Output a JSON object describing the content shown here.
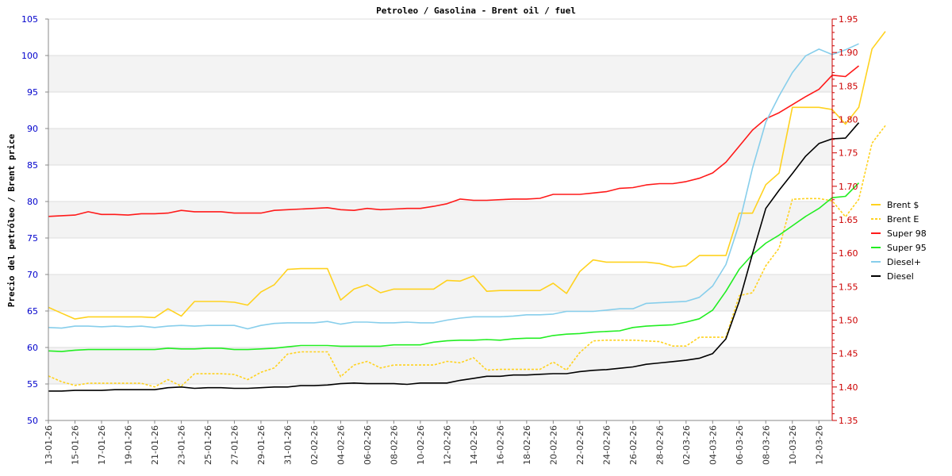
{
  "chart_data": {
    "type": "line",
    "title": "Petroleo / Gasolina  -  Brent oil / fuel",
    "ylabel": "Precio del petróleo  /  Brent price",
    "xlabel": "",
    "ylim_left": [
      50,
      105
    ],
    "ylim_right": [
      1.35,
      1.95
    ],
    "y_ticks_left": [
      50,
      55,
      60,
      65,
      70,
      75,
      80,
      85,
      90,
      95,
      100,
      105
    ],
    "y_ticks_right": [
      "1.35",
      "1.40",
      "1.45",
      "1.50",
      "1.55",
      "1.60",
      "1.65",
      "1.70",
      "1.75",
      "1.80",
      "1.85",
      "1.90",
      "1.95"
    ],
    "x_tick_labels": [
      "13-01-26",
      "15-01-26",
      "17-01-26",
      "19-01-26",
      "21-01-26",
      "23-01-26",
      "25-01-26",
      "27-01-26",
      "29-01-26",
      "31-01-26",
      "02-02-26",
      "04-02-26",
      "06-02-26",
      "08-02-26",
      "10-02-26",
      "12-02-26",
      "14-02-26",
      "16-02-26",
      "18-02-26",
      "20-02-26",
      "22-02-26",
      "24-02-26",
      "26-02-26",
      "28-02-26",
      "02-03-26",
      "04-03-26",
      "06-03-26",
      "08-03-26",
      "10-03-26",
      "12-03-26"
    ],
    "x_count": 60,
    "grid": true,
    "legend_position": "right",
    "series": [
      {
        "name": "Brent $",
        "axis": "left",
        "color": "#ffd21f",
        "dash": false,
        "values": [
          65.5,
          64.7,
          63.9,
          64.2,
          64.2,
          64.2,
          64.2,
          64.2,
          64.1,
          65.3,
          64.3,
          66.3,
          66.3,
          66.3,
          66.2,
          65.8,
          67.6,
          68.6,
          70.7,
          70.8,
          70.8,
          70.8,
          66.5,
          68.0,
          68.6,
          67.5,
          68.0,
          68.0,
          68.0,
          68.0,
          69.2,
          69.1,
          69.8,
          67.7,
          67.8,
          67.8,
          67.8,
          67.8,
          68.8,
          67.4,
          70.4,
          72.0,
          71.7,
          71.7,
          71.7,
          71.7,
          71.5,
          71.0,
          71.2,
          72.6,
          72.6,
          72.6,
          78.4,
          78.4,
          82.3,
          83.9,
          92.9,
          92.9,
          92.9,
          92.6,
          90.6,
          92.9,
          100.9,
          103.3
        ]
      },
      {
        "name": "Brent E",
        "axis": "left",
        "color": "#ffd21f",
        "dash": true,
        "values": [
          56.1,
          55.3,
          54.8,
          55.1,
          55.1,
          55.1,
          55.1,
          55.1,
          54.6,
          55.6,
          54.7,
          56.4,
          56.4,
          56.4,
          56.3,
          55.6,
          56.6,
          57.2,
          59.1,
          59.4,
          59.4,
          59.4,
          56.0,
          57.6,
          58.1,
          57.2,
          57.6,
          57.6,
          57.6,
          57.6,
          58.1,
          57.9,
          58.6,
          56.9,
          57.0,
          57.0,
          57.0,
          57.0,
          58.0,
          56.9,
          59.3,
          60.9,
          61.0,
          61.0,
          61.0,
          60.9,
          60.8,
          60.2,
          60.2,
          61.4,
          61.4,
          61.4,
          67.1,
          67.5,
          71.2,
          73.6,
          80.3,
          80.4,
          80.4,
          80.1,
          77.9,
          80.3,
          88.0,
          90.4
        ]
      },
      {
        "name": "Super 98",
        "axis": "right",
        "color": "#ff1a1a",
        "dash": false,
        "values": [
          1.655,
          1.656,
          1.657,
          1.662,
          1.658,
          1.658,
          1.657,
          1.659,
          1.659,
          1.66,
          1.664,
          1.662,
          1.662,
          1.662,
          1.66,
          1.66,
          1.66,
          1.664,
          1.665,
          1.666,
          1.667,
          1.668,
          1.665,
          1.664,
          1.667,
          1.665,
          1.666,
          1.667,
          1.667,
          1.67,
          1.674,
          1.681,
          1.679,
          1.679,
          1.68,
          1.681,
          1.681,
          1.682,
          1.688,
          1.688,
          1.688,
          1.69,
          1.692,
          1.697,
          1.698,
          1.702,
          1.704,
          1.704,
          1.707,
          1.712,
          1.72,
          1.736,
          1.76,
          1.784,
          1.801,
          1.81,
          1.822,
          1.834,
          1.845,
          1.866,
          1.864,
          1.88
        ]
      },
      {
        "name": "Super 95",
        "axis": "right",
        "color": "#22ee22",
        "dash": false,
        "values": [
          1.454,
          1.453,
          1.455,
          1.456,
          1.456,
          1.456,
          1.456,
          1.456,
          1.456,
          1.458,
          1.457,
          1.457,
          1.458,
          1.458,
          1.456,
          1.456,
          1.457,
          1.458,
          1.46,
          1.462,
          1.462,
          1.462,
          1.461,
          1.461,
          1.461,
          1.461,
          1.463,
          1.463,
          1.463,
          1.467,
          1.469,
          1.47,
          1.47,
          1.471,
          1.47,
          1.472,
          1.473,
          1.473,
          1.477,
          1.479,
          1.48,
          1.482,
          1.483,
          1.484,
          1.489,
          1.491,
          1.492,
          1.493,
          1.497,
          1.502,
          1.515,
          1.543,
          1.576,
          1.598,
          1.615,
          1.627,
          1.641,
          1.655,
          1.667,
          1.683,
          1.685,
          1.705
        ]
      },
      {
        "name": "Diesel+",
        "axis": "right",
        "color": "#87ceeb",
        "dash": false,
        "values": [
          1.489,
          1.488,
          1.491,
          1.491,
          1.49,
          1.491,
          1.49,
          1.491,
          1.489,
          1.491,
          1.492,
          1.491,
          1.492,
          1.492,
          1.492,
          1.487,
          1.492,
          1.495,
          1.496,
          1.496,
          1.496,
          1.498,
          1.494,
          1.497,
          1.497,
          1.496,
          1.496,
          1.497,
          1.496,
          1.496,
          1.5,
          1.503,
          1.505,
          1.505,
          1.505,
          1.506,
          1.508,
          1.508,
          1.509,
          1.513,
          1.513,
          1.513,
          1.515,
          1.517,
          1.517,
          1.525,
          1.526,
          1.527,
          1.528,
          1.534,
          1.551,
          1.583,
          1.644,
          1.727,
          1.796,
          1.835,
          1.87,
          1.895,
          1.905,
          1.897,
          1.904,
          1.913
        ]
      },
      {
        "name": "Diesel",
        "axis": "right",
        "color": "#000000",
        "dash": false,
        "values": [
          1.394,
          1.394,
          1.395,
          1.395,
          1.395,
          1.396,
          1.396,
          1.396,
          1.396,
          1.399,
          1.4,
          1.398,
          1.399,
          1.399,
          1.398,
          1.398,
          1.399,
          1.4,
          1.4,
          1.402,
          1.402,
          1.403,
          1.405,
          1.406,
          1.405,
          1.405,
          1.405,
          1.404,
          1.406,
          1.406,
          1.406,
          1.41,
          1.413,
          1.416,
          1.416,
          1.418,
          1.418,
          1.419,
          1.42,
          1.42,
          1.423,
          1.425,
          1.426,
          1.428,
          1.43,
          1.434,
          1.436,
          1.438,
          1.44,
          1.443,
          1.45,
          1.472,
          1.528,
          1.599,
          1.667,
          1.694,
          1.719,
          1.745,
          1.764,
          1.771,
          1.772,
          1.795
        ]
      }
    ]
  }
}
